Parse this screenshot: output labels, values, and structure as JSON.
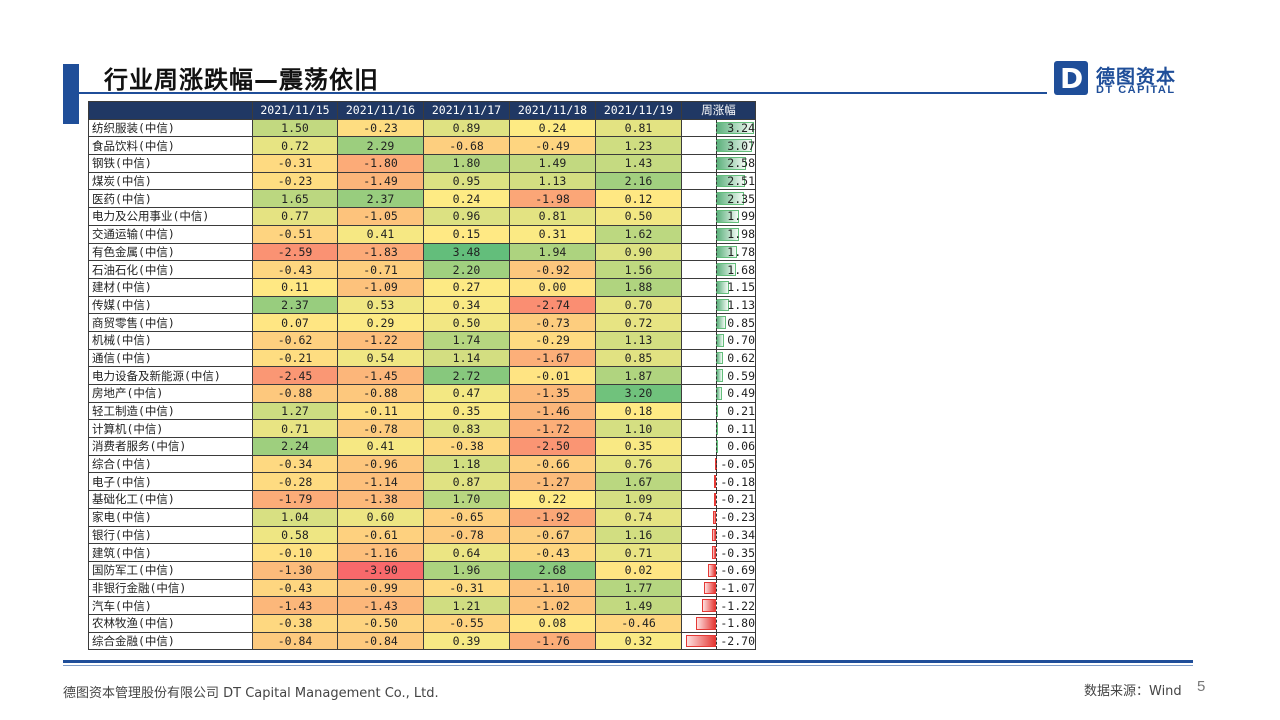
{
  "slide": {
    "title": "行业周涨跌幅—震荡依旧",
    "logo_mark": "D",
    "logo_cn": "德图资本",
    "logo_en": "DT CAPITAL",
    "footer_company": "德图资本管理股份有限公司  DT Capital Management  Co., Ltd.",
    "footer_source": "数据来源：Wind",
    "page_number": "5"
  },
  "colors": {
    "accent": "#1f4e99",
    "header_bg": "#203864",
    "scale_low": "#f8696b",
    "scale_mid": "#ffeb84",
    "scale_high": "#63be7b"
  },
  "table": {
    "headers": [
      "2021/11/15",
      "2021/11/16",
      "2021/11/17",
      "2021/11/18",
      "2021/11/19",
      "周涨幅"
    ],
    "rows": [
      {
        "name": "纺织服装(中信)",
        "values": [
          "1.50",
          "-0.23",
          "0.89",
          "0.24",
          "0.81"
        ],
        "weekly": "3.24"
      },
      {
        "name": "食品饮料(中信)",
        "values": [
          "0.72",
          "2.29",
          "-0.68",
          "-0.49",
          "1.23"
        ],
        "weekly": "3.07"
      },
      {
        "name": "钢铁(中信)",
        "values": [
          "-0.31",
          "-1.80",
          "1.80",
          "1.49",
          "1.43"
        ],
        "weekly": "2.58"
      },
      {
        "name": "煤炭(中信)",
        "values": [
          "-0.23",
          "-1.49",
          "0.95",
          "1.13",
          "2.16"
        ],
        "weekly": "2.51"
      },
      {
        "name": "医药(中信)",
        "values": [
          "1.65",
          "2.37",
          "0.24",
          "-1.98",
          "0.12"
        ],
        "weekly": "2.35"
      },
      {
        "name": "电力及公用事业(中信)",
        "values": [
          "0.77",
          "-1.05",
          "0.96",
          "0.81",
          "0.50"
        ],
        "weekly": "1.99"
      },
      {
        "name": "交通运输(中信)",
        "values": [
          "-0.51",
          "0.41",
          "0.15",
          "0.31",
          "1.62"
        ],
        "weekly": "1.98"
      },
      {
        "name": "有色金属(中信)",
        "values": [
          "-2.59",
          "-1.83",
          "3.48",
          "1.94",
          "0.90"
        ],
        "weekly": "1.78"
      },
      {
        "name": "石油石化(中信)",
        "values": [
          "-0.43",
          "-0.71",
          "2.20",
          "-0.92",
          "1.56"
        ],
        "weekly": "1.68"
      },
      {
        "name": "建材(中信)",
        "values": [
          "0.11",
          "-1.09",
          "0.27",
          "0.00",
          "1.88"
        ],
        "weekly": "1.15"
      },
      {
        "name": "传媒(中信)",
        "values": [
          "2.37",
          "0.53",
          "0.34",
          "-2.74",
          "0.70"
        ],
        "weekly": "1.13"
      },
      {
        "name": "商贸零售(中信)",
        "values": [
          "0.07",
          "0.29",
          "0.50",
          "-0.73",
          "0.72"
        ],
        "weekly": "0.85"
      },
      {
        "name": "机械(中信)",
        "values": [
          "-0.62",
          "-1.22",
          "1.74",
          "-0.29",
          "1.13"
        ],
        "weekly": "0.70"
      },
      {
        "name": "通信(中信)",
        "values": [
          "-0.21",
          "0.54",
          "1.14",
          "-1.67",
          "0.85"
        ],
        "weekly": "0.62"
      },
      {
        "name": "电力设备及新能源(中信)",
        "values": [
          "-2.45",
          "-1.45",
          "2.72",
          "-0.01",
          "1.87"
        ],
        "weekly": "0.59"
      },
      {
        "name": "房地产(中信)",
        "values": [
          "-0.88",
          "-0.88",
          "0.47",
          "-1.35",
          "3.20"
        ],
        "weekly": "0.49"
      },
      {
        "name": "轻工制造(中信)",
        "values": [
          "1.27",
          "-0.11",
          "0.35",
          "-1.46",
          "0.18"
        ],
        "weekly": "0.21"
      },
      {
        "name": "计算机(中信)",
        "values": [
          "0.71",
          "-0.78",
          "0.83",
          "-1.72",
          "1.10"
        ],
        "weekly": "0.11"
      },
      {
        "name": "消费者服务(中信)",
        "values": [
          "2.24",
          "0.41",
          "-0.38",
          "-2.50",
          "0.35"
        ],
        "weekly": "0.06"
      },
      {
        "name": "综合(中信)",
        "values": [
          "-0.34",
          "-0.96",
          "1.18",
          "-0.66",
          "0.76"
        ],
        "weekly": "-0.05"
      },
      {
        "name": "电子(中信)",
        "values": [
          "-0.28",
          "-1.14",
          "0.87",
          "-1.27",
          "1.67"
        ],
        "weekly": "-0.18"
      },
      {
        "name": "基础化工(中信)",
        "values": [
          "-1.79",
          "-1.38",
          "1.70",
          "0.22",
          "1.09"
        ],
        "weekly": "-0.21"
      },
      {
        "name": "家电(中信)",
        "values": [
          "1.04",
          "0.60",
          "-0.65",
          "-1.92",
          "0.74"
        ],
        "weekly": "-0.23"
      },
      {
        "name": "银行(中信)",
        "values": [
          "0.58",
          "-0.61",
          "-0.78",
          "-0.67",
          "1.16"
        ],
        "weekly": "-0.34"
      },
      {
        "name": "建筑(中信)",
        "values": [
          "-0.10",
          "-1.16",
          "0.64",
          "-0.43",
          "0.71"
        ],
        "weekly": "-0.35"
      },
      {
        "name": "国防军工(中信)",
        "values": [
          "-1.30",
          "-3.90",
          "1.96",
          "2.68",
          "0.02"
        ],
        "weekly": "-0.69"
      },
      {
        "name": "非银行金融(中信)",
        "values": [
          "-0.43",
          "-0.99",
          "-0.31",
          "-1.10",
          "1.77"
        ],
        "weekly": "-1.07"
      },
      {
        "name": "汽车(中信)",
        "values": [
          "-1.43",
          "-1.43",
          "1.21",
          "-1.02",
          "1.49"
        ],
        "weekly": "-1.22"
      },
      {
        "name": "农林牧渔(中信)",
        "values": [
          "-0.38",
          "-0.50",
          "-0.55",
          "0.08",
          "-0.46"
        ],
        "weekly": "-1.80"
      },
      {
        "name": "综合金融(中信)",
        "values": [
          "-0.84",
          "-0.84",
          "0.39",
          "-1.76",
          "0.32"
        ],
        "weekly": "-2.70"
      }
    ]
  }
}
